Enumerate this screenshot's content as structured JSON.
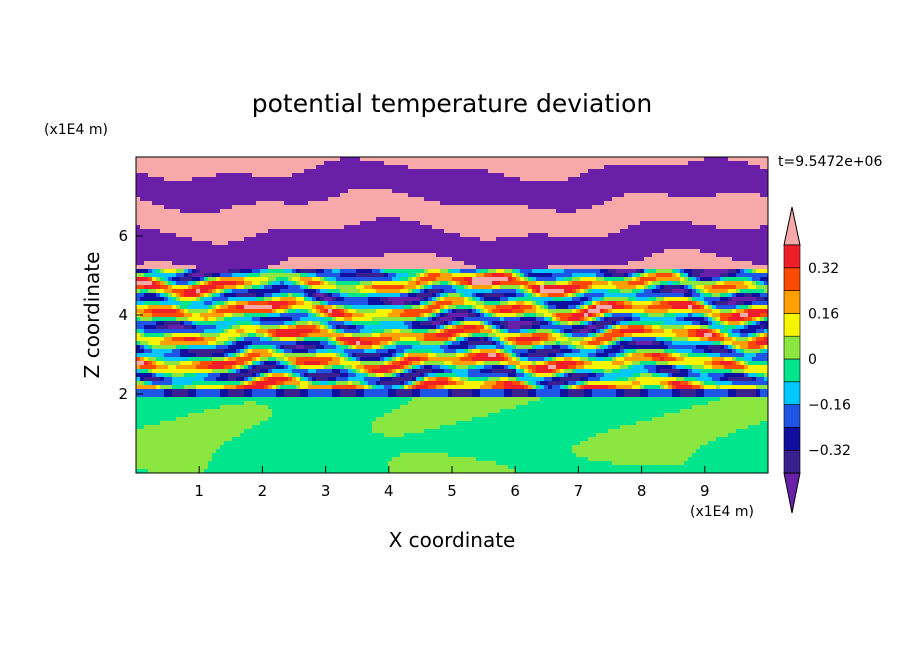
{
  "chart_data": {
    "type": "heatmap",
    "title": "potential temperature deviation",
    "xlabel": "X coordinate",
    "ylabel": "Z coordinate",
    "x_unit": "(x1E4 m)",
    "y_unit": "(x1E4 m)",
    "time_label": "t=9.5472e+06",
    "xlim": [
      0,
      10
    ],
    "ylim": [
      0,
      8
    ],
    "x_ticks": [
      1,
      2,
      3,
      4,
      5,
      6,
      7,
      8,
      9
    ],
    "y_ticks": [
      2,
      4,
      6
    ],
    "grid": false,
    "colorbar": {
      "levels": [
        -0.4,
        -0.32,
        -0.24,
        -0.16,
        -0.08,
        0,
        0.08,
        0.16,
        0.24,
        0.32,
        0.4
      ],
      "colors": [
        "#3a1f8f",
        "#1010a0",
        "#1e55e6",
        "#00c8ff",
        "#00e48c",
        "#8ce640",
        "#f5f500",
        "#ffa000",
        "#ff4a00",
        "#f01e28"
      ],
      "over_color": "#f7a8a8",
      "under_color": "#6a1fa8",
      "tick_labels": [
        {
          "value": 0.32,
          "label": "0.32"
        },
        {
          "value": 0.16,
          "label": "0.16"
        },
        {
          "value": 0,
          "label": "0"
        },
        {
          "value": -0.16,
          "label": "−0.16"
        },
        {
          "value": -0.32,
          "label": "−0.32"
        }
      ]
    }
  }
}
